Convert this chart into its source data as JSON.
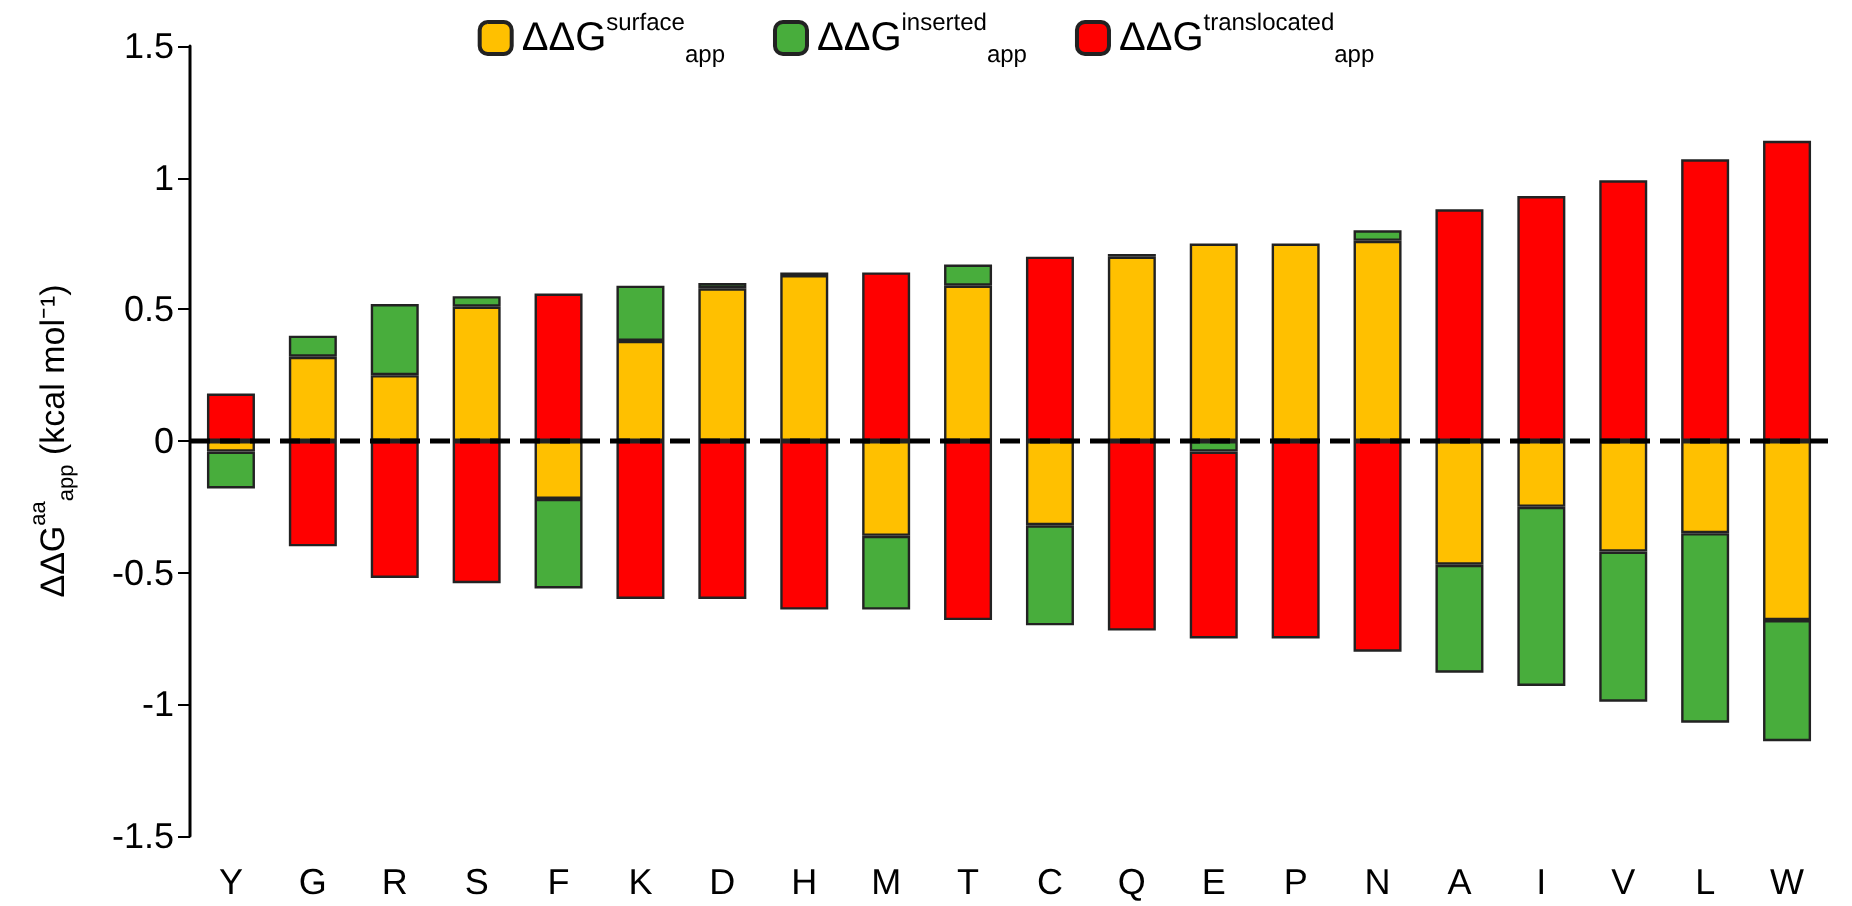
{
  "chart_data": {
    "type": "bar",
    "stacked": true,
    "ylabel": "ΔΔG$^{aa}$$_{app}$ (kcal mol⁻¹)",
    "categories": [
      "Y",
      "G",
      "R",
      "S",
      "F",
      "K",
      "D",
      "H",
      "M",
      "T",
      "C",
      "Q",
      "E",
      "P",
      "N",
      "A",
      "I",
      "V",
      "L",
      "W"
    ],
    "series": [
      {
        "name": "ΔΔG$^{surface}$$_{app}$",
        "color": "#ffc000",
        "values": [
          -0.04,
          0.32,
          0.25,
          0.51,
          -0.22,
          0.38,
          0.58,
          0.63,
          -0.36,
          0.59,
          -0.32,
          0.7,
          0.75,
          0.75,
          0.76,
          -0.47,
          -0.25,
          -0.42,
          -0.35,
          -0.68
        ]
      },
      {
        "name": "ΔΔG$^{inserted}$$_{app}$",
        "color": "#48ad3c",
        "values": [
          -0.14,
          0.08,
          0.27,
          0.04,
          -0.34,
          0.21,
          0.02,
          0.01,
          -0.28,
          0.08,
          -0.38,
          0.01,
          -0.04,
          null,
          0.04,
          -0.41,
          -0.68,
          -0.57,
          -0.72,
          -0.46
        ]
      },
      {
        "name": "ΔΔG$^{translocated}$$_{app}$",
        "color": "#ff0000",
        "values": [
          0.18,
          -0.4,
          -0.52,
          -0.54,
          0.56,
          -0.6,
          -0.6,
          -0.64,
          0.64,
          -0.68,
          0.7,
          -0.72,
          -0.71,
          -0.75,
          -0.8,
          0.88,
          0.93,
          0.99,
          1.07,
          1.14
        ]
      }
    ],
    "ylim": [
      -1.5,
      1.5
    ],
    "yticks": [
      -1.5,
      -1,
      -0.5,
      0,
      0.5,
      1,
      1.5
    ],
    "grid": false,
    "legend": "top",
    "ref_lines": [
      {
        "axis": "y",
        "value": 0,
        "color": "#000000",
        "line_style": "dashed"
      }
    ]
  }
}
